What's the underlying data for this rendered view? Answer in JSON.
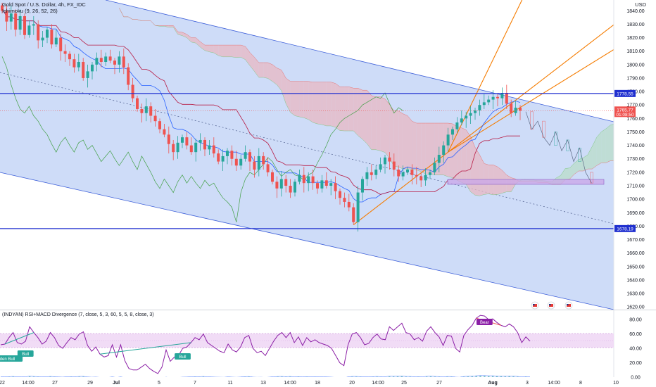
{
  "symbol": {
    "title": "Gold Spot / U.S. Dollar, 4h, FX_IDC",
    "indicator": "Ichimoku (9, 26, 52, 26)"
  },
  "currency": "USD",
  "sub_indicator": "(INDYAN) RSI+MACD Divergence (7, close, 5, 3, 60, 5, 5, 8, close, 3)",
  "colors": {
    "bull": "#26a69a",
    "bear": "#ef5350",
    "channel_fill": "#c6d6f7",
    "channel_line": "#3d5fd9",
    "hline": "#1f2fcf",
    "trend": "#f57c00",
    "kumo_bear": "#e8b8c3",
    "kumo_bull": "#b9ddc9",
    "zone": "#c9a6e8",
    "rsi": "#8b1fa6",
    "rsi_band": "#f1dcf6",
    "price_tag": "#ef5350"
  },
  "chart_data": {
    "type": "candlestick",
    "x_axis_labels": [
      "22",
      "14:00",
      "27",
      "29",
      "Jul",
      "5",
      "7",
      "11",
      "13",
      "14:00",
      "18",
      "20",
      "14:00",
      "25",
      "27",
      "Aug",
      "3",
      "14:00",
      "8",
      "10"
    ],
    "y_axis": {
      "range": [
        1618,
        1848
      ],
      "ticks": [
        1620,
        1630,
        1640,
        1650,
        1660,
        1670,
        1680,
        1690,
        1700,
        1710,
        1720,
        1730,
        1740,
        1750,
        1760,
        1770,
        1780,
        1790,
        1800,
        1810,
        1820,
        1830,
        1840
      ]
    },
    "horizontal_levels": [
      {
        "value": 1778.55,
        "label": "1778.55"
      },
      {
        "value": 1678.19,
        "label": "1678.19"
      }
    ],
    "current_price": {
      "value": 1765.77,
      "label": "1765.77",
      "countdown": "01:08:50"
    },
    "candles_close": [
      1840,
      1832,
      1838,
      1826,
      1836,
      1822,
      1829,
      1830,
      1818,
      1820,
      1826,
      1815,
      1820,
      1810,
      1808,
      1804,
      1798,
      1802,
      1790,
      1795,
      1800,
      1805,
      1802,
      1806,
      1803,
      1800,
      1806,
      1798,
      1785,
      1775,
      1767,
      1764,
      1769,
      1762,
      1758,
      1752,
      1748,
      1741,
      1735,
      1742,
      1746,
      1740,
      1735,
      1742,
      1744,
      1737,
      1740,
      1734,
      1728,
      1732,
      1736,
      1730,
      1725,
      1730,
      1735,
      1728,
      1722,
      1732,
      1726,
      1720,
      1713,
      1708,
      1715,
      1710,
      1705,
      1713,
      1718,
      1712,
      1717,
      1712,
      1708,
      1714,
      1710,
      1712,
      1706,
      1701,
      1698,
      1694,
      1683,
      1705,
      1715,
      1720,
      1718,
      1722,
      1726,
      1731,
      1728,
      1722,
      1717,
      1720,
      1722,
      1718,
      1717,
      1714,
      1718,
      1720,
      1727,
      1733,
      1740,
      1748,
      1752,
      1757,
      1760,
      1762,
      1764,
      1766,
      1770,
      1772,
      1774,
      1776,
      1775,
      1779,
      1771,
      1764,
      1768,
      1765.77
    ],
    "rsi": {
      "range": [
        0,
        90
      ],
      "ticks": [
        0,
        20,
        40,
        60,
        80
      ],
      "band": [
        40,
        60
      ],
      "values": [
        45,
        46,
        55,
        62,
        48,
        46,
        50,
        70,
        62,
        55,
        46,
        50,
        62,
        55,
        44,
        40,
        48,
        55,
        52,
        60,
        63,
        44,
        36,
        42,
        32,
        28,
        30,
        45,
        28,
        45,
        23,
        12,
        10,
        10,
        14,
        18,
        12,
        8,
        5,
        14,
        38,
        22,
        28,
        30,
        40,
        42,
        48,
        55,
        52,
        60,
        48,
        44,
        40,
        36,
        34,
        46,
        38,
        35,
        42,
        55,
        58,
        40,
        34,
        36,
        30,
        40,
        50,
        58,
        62,
        55,
        62,
        48,
        56,
        44,
        55,
        49,
        52,
        48,
        46,
        44,
        40,
        30,
        20,
        16,
        45,
        60,
        62,
        55,
        45,
        47,
        55,
        60,
        53,
        52,
        70,
        65,
        70,
        75,
        62,
        60,
        52,
        55,
        50,
        64,
        70,
        62,
        56,
        44,
        58,
        57,
        40,
        35,
        58,
        66,
        72,
        82,
        86,
        85,
        80,
        81,
        76,
        72,
        70,
        74,
        70,
        62,
        48,
        56,
        50
      ]
    },
    "sub_ticks": [
      "80.00",
      "60.00",
      "40.00",
      "20.00",
      "0.00"
    ],
    "signal_labels": [
      "Bull",
      "Bull",
      "Bear",
      "Hidden Bull"
    ]
  }
}
